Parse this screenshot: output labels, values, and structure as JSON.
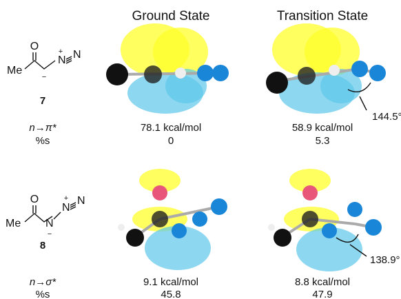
{
  "header": {
    "columns": [
      "Ground State",
      "Transition State"
    ]
  },
  "rows": [
    {
      "compound": "7",
      "atoms": [
        "O",
        "Me",
        "N",
        "+",
        "N",
        "−"
      ],
      "metrics": [
        "n→π*",
        "%s"
      ],
      "ground": [
        "78.1 kcal/mol",
        "0"
      ],
      "transition": [
        "58.9 kcal/mol",
        "5.3"
      ],
      "angle": "144.5°"
    },
    {
      "compound": "8",
      "atoms": [
        "O",
        "Me",
        "N",
        "−",
        "N",
        "+",
        "N"
      ],
      "metrics": [
        "n→σ*",
        "%s"
      ],
      "ground": [
        "9.1 kcal/mol",
        "45.8"
      ],
      "transition": [
        "8.8 kcal/mol",
        "47.9"
      ],
      "angle": "138.9°"
    }
  ]
}
